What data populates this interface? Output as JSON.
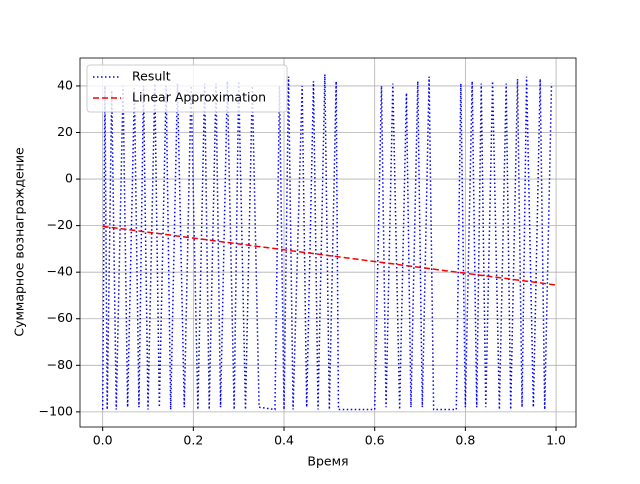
{
  "chart_data": {
    "type": "line",
    "xlabel": "Время",
    "ylabel": "Суммарное вознаграждение",
    "xlim": [
      -0.05,
      1.044
    ],
    "ylim": [
      -106.5,
      52
    ],
    "xticks": [
      {
        "value": 0,
        "label": "0.0"
      },
      0.2,
      0.4,
      0.6,
      0.8,
      {
        "value": 1,
        "label": "1.0"
      }
    ],
    "yticks": [
      {
        "value": -100,
        "label": "−100"
      },
      {
        "value": -80,
        "label": "−80"
      },
      {
        "value": -60,
        "label": "−60"
      },
      {
        "value": -40,
        "label": "−40"
      },
      {
        "value": -20,
        "label": "−20"
      },
      0,
      20,
      40
    ],
    "grid": true,
    "legend": "upper left",
    "series": [
      {
        "name": "Result",
        "color": "#0000ff",
        "style": "dotted",
        "x": [
          0.0,
          0.005,
          0.01,
          0.02,
          0.03,
          0.045,
          0.055,
          0.07,
          0.08,
          0.09,
          0.1,
          0.115,
          0.125,
          0.14,
          0.15,
          0.165,
          0.18,
          0.195,
          0.21,
          0.225,
          0.235,
          0.25,
          0.26,
          0.275,
          0.29,
          0.3,
          0.315,
          0.33,
          0.345,
          0.38,
          0.39,
          0.4,
          0.41,
          0.42,
          0.44,
          0.45,
          0.465,
          0.475,
          0.49,
          0.5,
          0.515,
          0.52,
          0.6,
          0.615,
          0.625,
          0.64,
          0.655,
          0.67,
          0.68,
          0.695,
          0.705,
          0.72,
          0.73,
          0.78,
          0.79,
          0.8,
          0.815,
          0.825,
          0.835,
          0.845,
          0.86,
          0.875,
          0.89,
          0.9,
          0.915,
          0.925,
          0.935,
          0.95,
          0.965,
          0.975,
          0.99
        ],
        "values": [
          -99,
          40,
          -99,
          38,
          -99,
          40,
          -98,
          39,
          -98,
          40,
          -99,
          41,
          -98,
          40,
          -99,
          41,
          -98,
          40,
          -99,
          41,
          -99,
          41,
          -98,
          42,
          -99,
          42,
          -99,
          40,
          -98,
          -99,
          40,
          -99,
          44,
          -99,
          40,
          -98,
          42,
          -99,
          45,
          -99,
          42,
          -99,
          -99,
          40,
          -98,
          41,
          -99,
          37,
          -98,
          42,
          -98,
          44,
          -99,
          -99,
          41,
          -98,
          42,
          -98,
          41,
          -98,
          42,
          -99,
          41,
          -99,
          43,
          -98,
          44,
          -98,
          43,
          -99,
          41
        ]
      },
      {
        "name": "Linear Approximation",
        "color": "#ff0000",
        "style": "dashed",
        "x": [
          0,
          1
        ],
        "values": [
          -20.3,
          -45.5
        ]
      }
    ]
  }
}
